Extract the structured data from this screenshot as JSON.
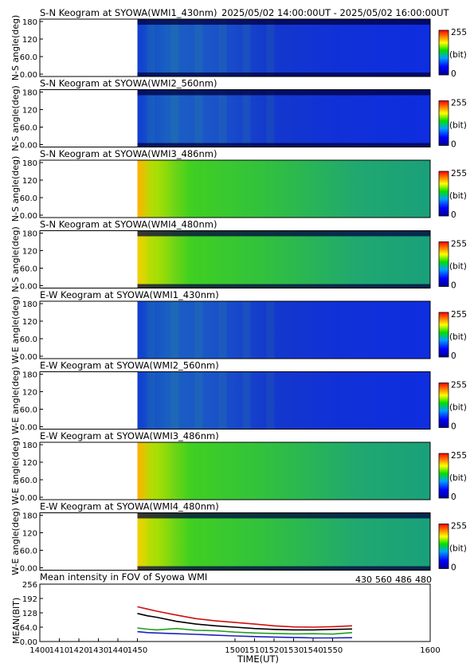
{
  "header": {
    "time_range": "2025/05/02 14:00:00UT - 2025/05/02 16:00:00UT"
  },
  "colorbar": {
    "max_label": "255",
    "unit_label": "(bit)",
    "min_label": "0"
  },
  "keogram_panels": [
    {
      "title": "S-N Keogram at SYOWA(WMI1_430nm)",
      "ylabel": "N-S angle(deg)",
      "base": "blue",
      "intensity": 0.35,
      "early_peak": 0.15,
      "dark_edges": true
    },
    {
      "title": "S-N Keogram at SYOWA(WMI2_560nm)",
      "ylabel": "N-S angle(deg)",
      "base": "blue",
      "intensity": 0.4,
      "early_peak": 0.2,
      "dark_edges": true
    },
    {
      "title": "S-N Keogram at SYOWA(WMI3_486nm)",
      "ylabel": "N-S angle(deg)",
      "base": "green",
      "intensity": 0.55,
      "early_peak": 0.4,
      "dark_edges": false
    },
    {
      "title": "S-N Keogram at SYOWA(WMI4_480nm)",
      "ylabel": "N-S angle(deg)",
      "base": "green",
      "intensity": 0.45,
      "early_peak": 0.35,
      "dark_edges": true
    },
    {
      "title": "E-W Keogram at SYOWA(WMI1_430nm)",
      "ylabel": "W-E angle(deg)",
      "base": "blue",
      "intensity": 0.35,
      "early_peak": 0.15,
      "dark_edges": false
    },
    {
      "title": "E-W Keogram at SYOWA(WMI2_560nm)",
      "ylabel": "W-E angle(deg)",
      "base": "blue",
      "intensity": 0.4,
      "early_peak": 0.2,
      "dark_edges": false
    },
    {
      "title": "E-W Keogram at SYOWA(WMI3_486nm)",
      "ylabel": "W-E angle(deg)",
      "base": "green",
      "intensity": 0.55,
      "early_peak": 0.4,
      "dark_edges": false
    },
    {
      "title": "E-W Keogram at SYOWA(WMI4_480nm)",
      "ylabel": "W-E angle(deg)",
      "base": "green",
      "intensity": 0.45,
      "early_peak": 0.35,
      "dark_edges": true
    }
  ],
  "keogram_yticks": [
    "180",
    "120",
    "60.0",
    "0.00"
  ],
  "chart_data": {
    "type": "line",
    "title": "Mean intensity in FOV of Syowa WMI",
    "ylabel": "MEAN(BIT)",
    "xlabel": "TIME(UT)",
    "xlim": [
      1400,
      1600
    ],
    "ylim": [
      0,
      256
    ],
    "xticks": [
      "1400",
      "1410",
      "1420",
      "1430",
      "1440",
      "1450",
      "1500",
      "1510",
      "1520",
      "1530",
      "1540",
      "1550",
      "1600"
    ],
    "yticks": [
      "256",
      "192",
      "128",
      "64.0",
      "0.00"
    ],
    "x": [
      1450,
      1455,
      1460,
      1470,
      1480,
      1490,
      1500,
      1510,
      1520,
      1530,
      1540,
      1550,
      1560
    ],
    "series": [
      {
        "name": "430",
        "color": "#2020c0",
        "values": [
          44,
          40,
          38,
          35,
          32,
          28,
          25,
          22,
          20,
          18,
          16,
          16,
          17
        ]
      },
      {
        "name": "560",
        "color": "#20a020",
        "values": [
          60,
          55,
          52,
          58,
          50,
          48,
          42,
          38,
          36,
          34,
          35,
          33,
          40
        ]
      },
      {
        "name": "486",
        "color": "#d01010",
        "values": [
          155,
          145,
          135,
          118,
          102,
          92,
          85,
          78,
          70,
          65,
          64,
          66,
          70
        ]
      },
      {
        "name": "480",
        "color": "#000000",
        "values": [
          125,
          115,
          108,
          90,
          78,
          70,
          64,
          58,
          54,
          52,
          52,
          54,
          56
        ]
      }
    ]
  }
}
